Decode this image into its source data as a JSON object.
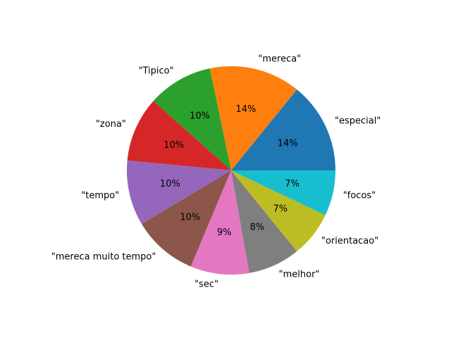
{
  "chart_data": {
    "type": "pie",
    "title": "",
    "start_angle_deg": 0,
    "direction": "counterclockwise",
    "slices": [
      {
        "label": "\"especial\"",
        "value": 14,
        "pct_label": "14%",
        "color": "#1f77b4"
      },
      {
        "label": "\"mereca\"",
        "value": 14,
        "pct_label": "14%",
        "color": "#ff7f0e"
      },
      {
        "label": "\"Tipico\"",
        "value": 10,
        "pct_label": "10%",
        "color": "#2ca02c"
      },
      {
        "label": "\"zona\"",
        "value": 10,
        "pct_label": "10%",
        "color": "#d62728"
      },
      {
        "label": "\"tempo\"",
        "value": 10,
        "pct_label": "10%",
        "color": "#9467bd"
      },
      {
        "label": "\"mereca muito tempo\"",
        "value": 10,
        "pct_label": "10%",
        "color": "#8c564b"
      },
      {
        "label": "\"sec\"",
        "value": 9,
        "pct_label": "9%",
        "color": "#e377c2"
      },
      {
        "label": "\"melhor\"",
        "value": 8,
        "pct_label": "8%",
        "color": "#7f7f7f"
      },
      {
        "label": "\"orientacao\"",
        "value": 7,
        "pct_label": "7%",
        "color": "#bcbd22"
      },
      {
        "label": "\"focos\"",
        "value": 7,
        "pct_label": "7%",
        "color": "#17becf"
      }
    ]
  }
}
